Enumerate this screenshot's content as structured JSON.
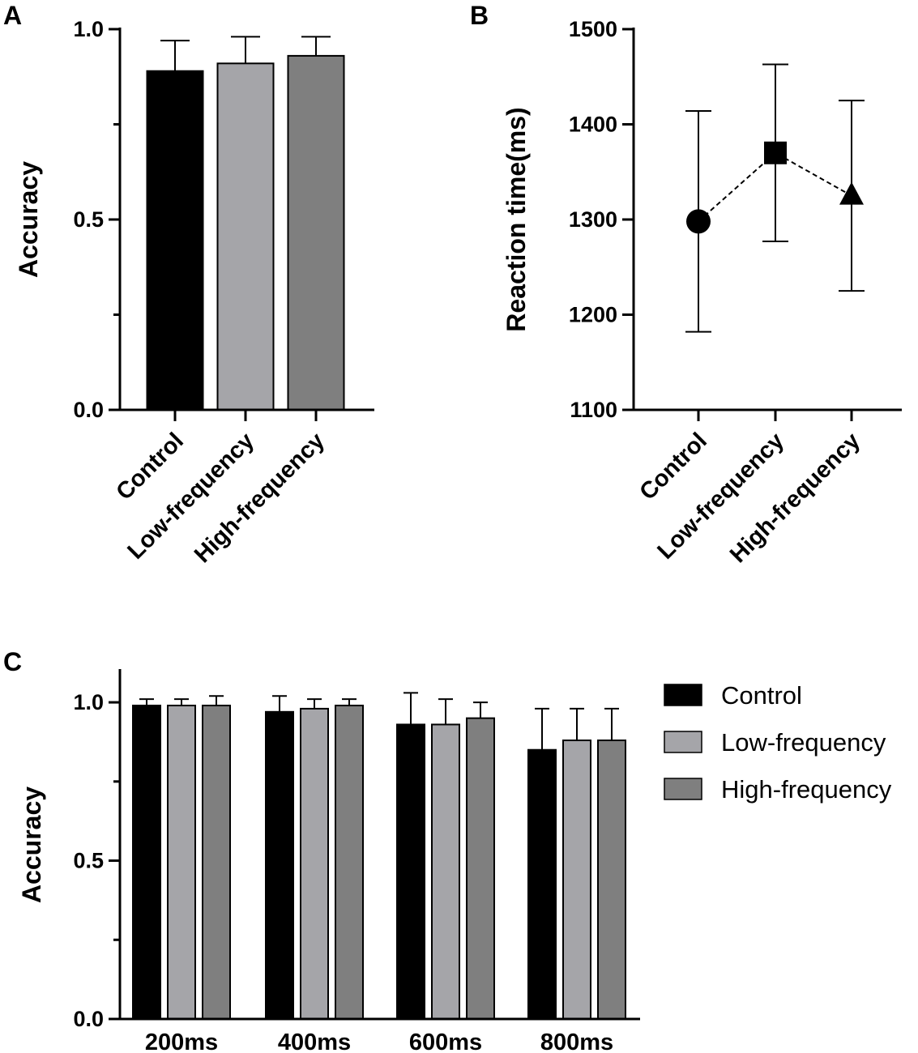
{
  "colors": {
    "control": "#000000",
    "low": "#a5a5a9",
    "high": "#7f7f7f"
  },
  "legend": [
    {
      "label": "Control",
      "color_key": "control"
    },
    {
      "label": "Low-frequency",
      "color_key": "low"
    },
    {
      "label": "High-frequency",
      "color_key": "high"
    }
  ],
  "chart_data": [
    {
      "panel": "A",
      "type": "bar",
      "categories": [
        "Control",
        "Low-frequency",
        "High-frequency"
      ],
      "values": [
        0.89,
        0.91,
        0.93
      ],
      "errors": [
        0.08,
        0.07,
        0.05
      ],
      "ylabel": "Accuracy",
      "ylim": [
        0,
        1.0
      ],
      "yticks": [
        0.0,
        0.5,
        1.0
      ],
      "ytick_labels": [
        "0.0",
        "0.5",
        "1.0"
      ],
      "yminor": [
        0.25,
        0.75
      ]
    },
    {
      "panel": "B",
      "type": "scatter",
      "categories": [
        "Control",
        "Low-frequency",
        "High-frequency"
      ],
      "values": [
        1298,
        1370,
        1325
      ],
      "errors": [
        116,
        93,
        100
      ],
      "markers": [
        "circle",
        "square",
        "triangle"
      ],
      "connected": "dashed",
      "ylabel": "Reaction time(ms)",
      "ylim": [
        1100,
        1500
      ],
      "yticks": [
        1100,
        1200,
        1300,
        1400,
        1500
      ],
      "ytick_labels": [
        "1100",
        "1200",
        "1300",
        "1400",
        "1500"
      ]
    },
    {
      "panel": "C",
      "type": "bar",
      "categories": [
        "200ms",
        "400ms",
        "600ms",
        "800ms"
      ],
      "series": [
        {
          "name": "Control",
          "values": [
            0.99,
            0.97,
            0.93,
            0.85
          ],
          "errors": [
            0.02,
            0.05,
            0.1,
            0.13
          ]
        },
        {
          "name": "Low-frequency",
          "values": [
            0.99,
            0.98,
            0.93,
            0.88
          ],
          "errors": [
            0.02,
            0.03,
            0.08,
            0.1
          ]
        },
        {
          "name": "High-frequency",
          "values": [
            0.99,
            0.99,
            0.95,
            0.88
          ],
          "errors": [
            0.03,
            0.02,
            0.05,
            0.1
          ]
        }
      ],
      "ylabel": "Accuracy",
      "ylim": [
        0,
        1.1
      ],
      "yticks": [
        0.0,
        0.5,
        1.0
      ],
      "ytick_labels": [
        "0.0",
        "0.5",
        "1.0"
      ],
      "yminor": [
        0.25,
        0.75
      ],
      "legend_position": "right"
    }
  ]
}
